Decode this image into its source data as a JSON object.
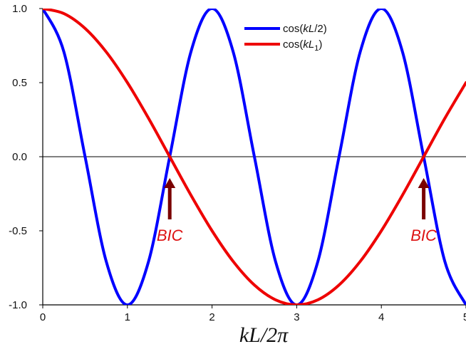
{
  "chart_data": {
    "type": "line",
    "xlabel": "kL/2π",
    "ylabel": "",
    "xlim": [
      0,
      5
    ],
    "ylim": [
      -1.0,
      1.0
    ],
    "x_ticks": [
      "0",
      "1",
      "2",
      "3",
      "4",
      "5"
    ],
    "y_ticks": [
      "1.0",
      "0.5",
      "0.0",
      "-0.5",
      "-1.0"
    ],
    "grid": false,
    "legend_position": "top-center",
    "series": [
      {
        "name": "cos(kL/2)",
        "legend_parts": [
          "cos(",
          "kL",
          "/2)",
          ""
        ],
        "color": "#0000ff",
        "x": [
          0,
          0.25,
          0.5,
          0.75,
          1,
          1.25,
          1.5,
          1.75,
          2,
          2.25,
          2.5,
          2.75,
          3,
          3.25,
          3.5,
          3.75,
          4,
          4.25,
          4.5,
          4.75,
          5
        ],
        "y": [
          1.0,
          0.707,
          0.0,
          -0.707,
          -1.0,
          -0.707,
          0.0,
          0.707,
          1.0,
          0.707,
          0.0,
          -0.707,
          -1.0,
          -0.707,
          0.0,
          0.707,
          1.0,
          0.707,
          0.0,
          -0.707,
          -1.0
        ]
      },
      {
        "name": "cos(kL1)",
        "legend_parts": [
          "cos(",
          "kL",
          ")",
          "1"
        ],
        "color": "#ee0000",
        "x": [
          0,
          0.25,
          0.5,
          0.75,
          1,
          1.25,
          1.5,
          1.75,
          2,
          2.25,
          2.5,
          2.75,
          3,
          3.25,
          3.5,
          3.75,
          4,
          4.25,
          4.5,
          4.75,
          5
        ],
        "y": [
          1.0,
          0.966,
          0.866,
          0.707,
          0.5,
          0.259,
          0.0,
          -0.259,
          -0.5,
          -0.707,
          -0.866,
          -0.966,
          -1.0,
          -0.966,
          -0.866,
          -0.707,
          -0.5,
          -0.259,
          0.0,
          0.259,
          0.5
        ]
      }
    ],
    "annotations": [
      {
        "text": "BIC",
        "x": 1.5,
        "y": 0.0,
        "color": "#dd1111",
        "arrow_color": "#7a0000"
      },
      {
        "text": "BIC",
        "x": 4.5,
        "y": 0.0,
        "color": "#dd1111",
        "arrow_color": "#7a0000"
      }
    ]
  }
}
